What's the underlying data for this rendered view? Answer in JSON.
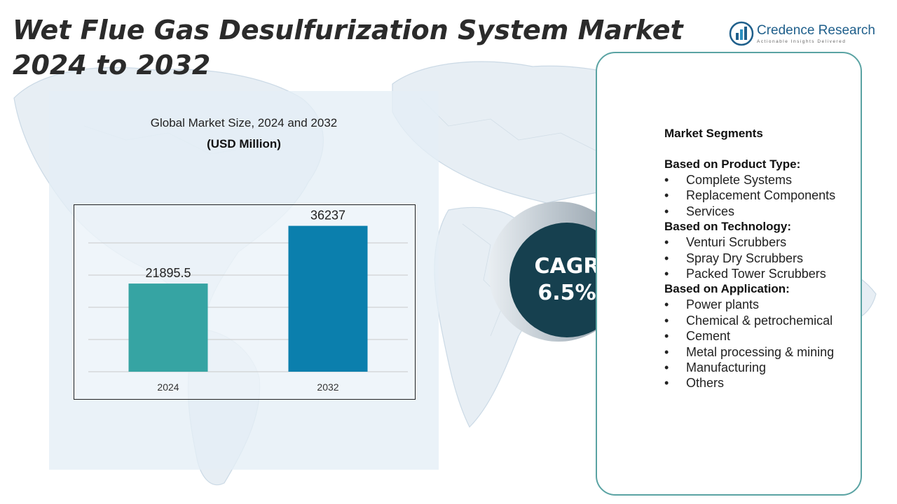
{
  "page": {
    "title": "Wet Flue Gas Desulfurization System Market 2024 to 2032"
  },
  "logo": {
    "name": "Credence Research",
    "tagline": "Actionable Insights Delivered",
    "icon": "bar-chart-logo-icon",
    "color": "#1f5f8b"
  },
  "chart_data": {
    "type": "bar",
    "title": "Global Market Size, 2024 and 2032",
    "subtitle": "(USD Million)",
    "categories": [
      "2024",
      "2032"
    ],
    "values": [
      21895.5,
      36237
    ],
    "data_labels": [
      "21895.5",
      "36237"
    ],
    "ylim": [
      0,
      40000
    ],
    "grid": true,
    "legend": "none",
    "colors": [
      "#36a4a3",
      "#0b7fad"
    ]
  },
  "cagr": {
    "label": "CAGR",
    "value": "6.5%",
    "color": "#16404f"
  },
  "segments": {
    "heading": "Market Segments",
    "groups": [
      {
        "title": "Based on Product Type:",
        "items": [
          "Complete Systems",
          "Replacement Components",
          "Services"
        ]
      },
      {
        "title": "Based on Technology:",
        "items": [
          "Venturi Scrubbers",
          "Spray Dry Scrubbers",
          "Packed Tower Scrubbers"
        ]
      },
      {
        "title": "Based on Application:",
        "items": [
          "Power plants",
          "Chemical & petrochemical",
          "Cement",
          "Metal processing & mining",
          "Manufacturing",
          "Others"
        ]
      }
    ],
    "border_color": "#5aa3a3"
  }
}
